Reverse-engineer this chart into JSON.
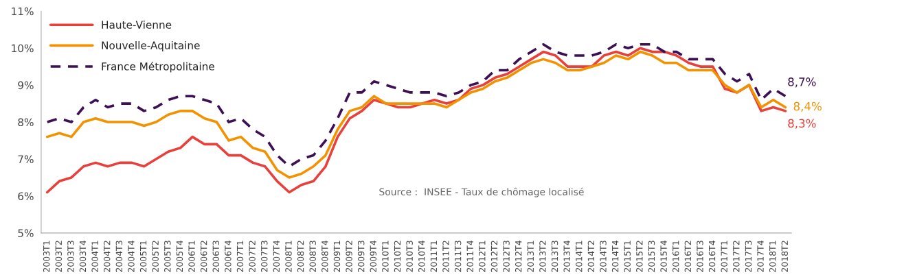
{
  "chart_data": {
    "type": "line",
    "categories": [
      "2003T1",
      "2003T2",
      "2003T3",
      "2003T4",
      "2004T1",
      "2004T2",
      "2004T3",
      "2004T4",
      "2005T1",
      "2005T2",
      "2005T3",
      "2005T4",
      "2006T1",
      "2006T2",
      "2006T3",
      "2006T4",
      "2007T1",
      "2007T2",
      "2007T3",
      "2007T4",
      "2008T1",
      "2008T2",
      "2008T3",
      "2008T4",
      "2009T1",
      "2009T2",
      "2009T3",
      "2009T4",
      "2010T1",
      "2010T2",
      "2010T3",
      "2010T4",
      "2011T1",
      "2011T2",
      "2011T3",
      "2011T4",
      "2012T1",
      "2012T2",
      "2012T3",
      "2012T4",
      "2013T1",
      "2013T2",
      "2013T3",
      "2013T4",
      "2014T1",
      "2014T2",
      "2014T3",
      "2014T4",
      "2015T1",
      "2015T2",
      "2015T3",
      "2015T4",
      "2016T1",
      "2016T2",
      "2016T3",
      "2016T4",
      "2017T1",
      "2017T2",
      "2017T3",
      "2017T4",
      "2018T1",
      "2018T2"
    ],
    "series": [
      {
        "name": "Haute-Vienne",
        "color": "#e8413c",
        "line_style": "solid",
        "values": [
          6.1,
          6.4,
          6.5,
          6.8,
          6.9,
          6.8,
          6.9,
          6.9,
          6.8,
          7.0,
          7.2,
          7.3,
          7.6,
          7.4,
          7.4,
          7.1,
          7.1,
          6.9,
          6.8,
          6.4,
          6.1,
          6.3,
          6.4,
          6.8,
          7.6,
          8.1,
          8.3,
          8.6,
          8.5,
          8.4,
          8.4,
          8.5,
          8.6,
          8.5,
          8.6,
          8.9,
          9.0,
          9.2,
          9.3,
          9.5,
          9.7,
          9.9,
          9.8,
          9.5,
          9.5,
          9.5,
          9.8,
          9.9,
          9.8,
          10.0,
          9.9,
          9.9,
          9.8,
          9.6,
          9.5,
          9.5,
          8.9,
          8.8,
          9.0,
          8.3,
          8.4,
          8.3
        ],
        "value_labels": [
          null,
          null,
          null,
          null,
          null,
          null,
          null,
          null,
          null,
          null,
          null,
          null,
          null,
          null,
          null,
          null,
          null,
          null,
          null,
          null,
          null,
          null,
          null,
          null,
          null,
          null,
          null,
          null,
          null,
          null,
          null,
          null,
          null,
          null,
          null,
          null,
          null,
          null,
          null,
          null,
          null,
          null,
          null,
          null,
          null,
          null,
          null,
          null,
          null,
          null,
          null,
          null,
          null,
          null,
          null,
          null,
          null,
          null,
          null,
          null,
          null,
          "8,3%"
        ]
      },
      {
        "name": "Nouvelle-Aquitaine",
        "color": "#f39200",
        "line_style": "solid",
        "values": [
          7.6,
          7.7,
          7.6,
          8.0,
          8.1,
          8.0,
          8.0,
          8.0,
          7.9,
          8.0,
          8.2,
          8.3,
          8.3,
          8.1,
          8.0,
          7.5,
          7.6,
          7.3,
          7.2,
          6.7,
          6.5,
          6.6,
          6.8,
          7.1,
          7.8,
          8.3,
          8.4,
          8.7,
          8.5,
          8.5,
          8.5,
          8.5,
          8.5,
          8.4,
          8.6,
          8.8,
          8.9,
          9.1,
          9.2,
          9.4,
          9.6,
          9.7,
          9.6,
          9.4,
          9.4,
          9.5,
          9.6,
          9.8,
          9.7,
          9.9,
          9.8,
          9.6,
          9.6,
          9.4,
          9.4,
          9.4,
          9.0,
          8.8,
          9.0,
          8.4,
          8.6,
          8.4
        ],
        "value_labels": [
          null,
          null,
          null,
          null,
          null,
          null,
          null,
          null,
          null,
          null,
          null,
          null,
          null,
          null,
          null,
          null,
          null,
          null,
          null,
          null,
          null,
          null,
          null,
          null,
          null,
          null,
          null,
          null,
          null,
          null,
          null,
          null,
          null,
          null,
          null,
          null,
          null,
          null,
          null,
          null,
          null,
          null,
          null,
          null,
          null,
          null,
          null,
          null,
          null,
          null,
          null,
          null,
          null,
          null,
          null,
          null,
          null,
          null,
          null,
          null,
          null,
          "8,4%"
        ]
      },
      {
        "name": "France Métropolitaine",
        "color": "#3c1053",
        "line_style": "dashed",
        "values": [
          8.0,
          8.1,
          8.0,
          8.4,
          8.6,
          8.4,
          8.5,
          8.5,
          8.3,
          8.4,
          8.6,
          8.7,
          8.7,
          8.6,
          8.5,
          8.0,
          8.1,
          7.8,
          7.6,
          7.1,
          6.8,
          7.0,
          7.1,
          7.5,
          8.1,
          8.8,
          8.8,
          9.1,
          9.0,
          8.9,
          8.8,
          8.8,
          8.8,
          8.7,
          8.8,
          9.0,
          9.1,
          9.4,
          9.4,
          9.7,
          9.9,
          10.1,
          9.9,
          9.8,
          9.8,
          9.8,
          9.9,
          10.1,
          10.0,
          10.1,
          10.1,
          9.9,
          9.9,
          9.7,
          9.7,
          9.7,
          9.3,
          9.1,
          9.3,
          8.6,
          8.9,
          8.7
        ],
        "value_labels": [
          null,
          null,
          null,
          null,
          null,
          null,
          null,
          null,
          null,
          null,
          null,
          null,
          null,
          null,
          null,
          null,
          null,
          null,
          null,
          null,
          null,
          null,
          null,
          null,
          null,
          null,
          null,
          null,
          null,
          null,
          null,
          null,
          null,
          null,
          null,
          null,
          null,
          null,
          null,
          null,
          null,
          null,
          null,
          null,
          null,
          null,
          null,
          null,
          null,
          null,
          null,
          null,
          null,
          null,
          null,
          null,
          null,
          null,
          null,
          null,
          null,
          "8,7%"
        ]
      }
    ],
    "ylim": [
      5,
      11
    ],
    "yticks": [
      {
        "value": 5,
        "label": "5%"
      },
      {
        "value": 6,
        "label": "6%"
      },
      {
        "value": 7,
        "label": "7%"
      },
      {
        "value": 8,
        "label": "8%"
      },
      {
        "value": 9,
        "label": "9%"
      },
      {
        "value": 10,
        "label": "10%"
      },
      {
        "value": 11,
        "label": "11%"
      }
    ],
    "grid": false,
    "legend": "top left",
    "marker": "none",
    "annotations": [
      "Source :  INSEE - Taux de chômage localisé"
    ]
  }
}
